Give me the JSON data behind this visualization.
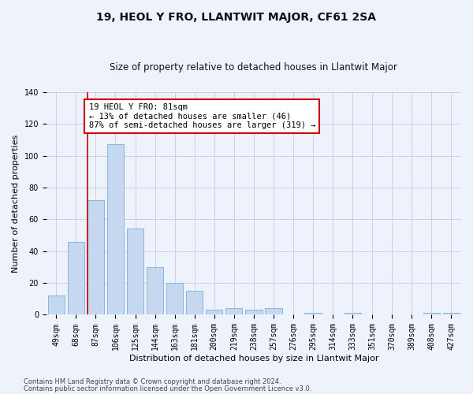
{
  "title": "19, HEOL Y FRO, LLANTWIT MAJOR, CF61 2SA",
  "subtitle": "Size of property relative to detached houses in Llantwit Major",
  "xlabel": "Distribution of detached houses by size in Llantwit Major",
  "ylabel": "Number of detached properties",
  "footer_line1": "Contains HM Land Registry data © Crown copyright and database right 2024.",
  "footer_line2": "Contains public sector information licensed under the Open Government Licence v3.0.",
  "bar_labels": [
    "49sqm",
    "68sqm",
    "87sqm",
    "106sqm",
    "125sqm",
    "144sqm",
    "163sqm",
    "181sqm",
    "200sqm",
    "219sqm",
    "238sqm",
    "257sqm",
    "276sqm",
    "295sqm",
    "314sqm",
    "333sqm",
    "351sqm",
    "370sqm",
    "389sqm",
    "408sqm",
    "427sqm"
  ],
  "bar_values": [
    12,
    46,
    72,
    107,
    54,
    30,
    20,
    15,
    3,
    4,
    3,
    4,
    0,
    1,
    0,
    1,
    0,
    0,
    0,
    1,
    1
  ],
  "bar_color": "#c5d8f0",
  "bar_edge_color": "#7aaedb",
  "annotation_text": "19 HEOL Y FRO: 81sqm\n← 13% of detached houses are smaller (46)\n87% of semi-detached houses are larger (319) →",
  "annotation_box_color": "#ffffff",
  "annotation_box_edge_color": "#cc0000",
  "vline_x_index": 2,
  "vline_color": "#cc0000",
  "background_color": "#eef2fb",
  "plot_background_color": "#eef2fb",
  "ylim": [
    0,
    140
  ],
  "yticks": [
    0,
    20,
    40,
    60,
    80,
    100,
    120,
    140
  ],
  "grid_color": "#c8cfe8",
  "title_fontsize": 10,
  "subtitle_fontsize": 8.5,
  "xlabel_fontsize": 8,
  "ylabel_fontsize": 8,
  "tick_fontsize": 7,
  "annotation_fontsize": 7.5,
  "footer_fontsize": 6
}
